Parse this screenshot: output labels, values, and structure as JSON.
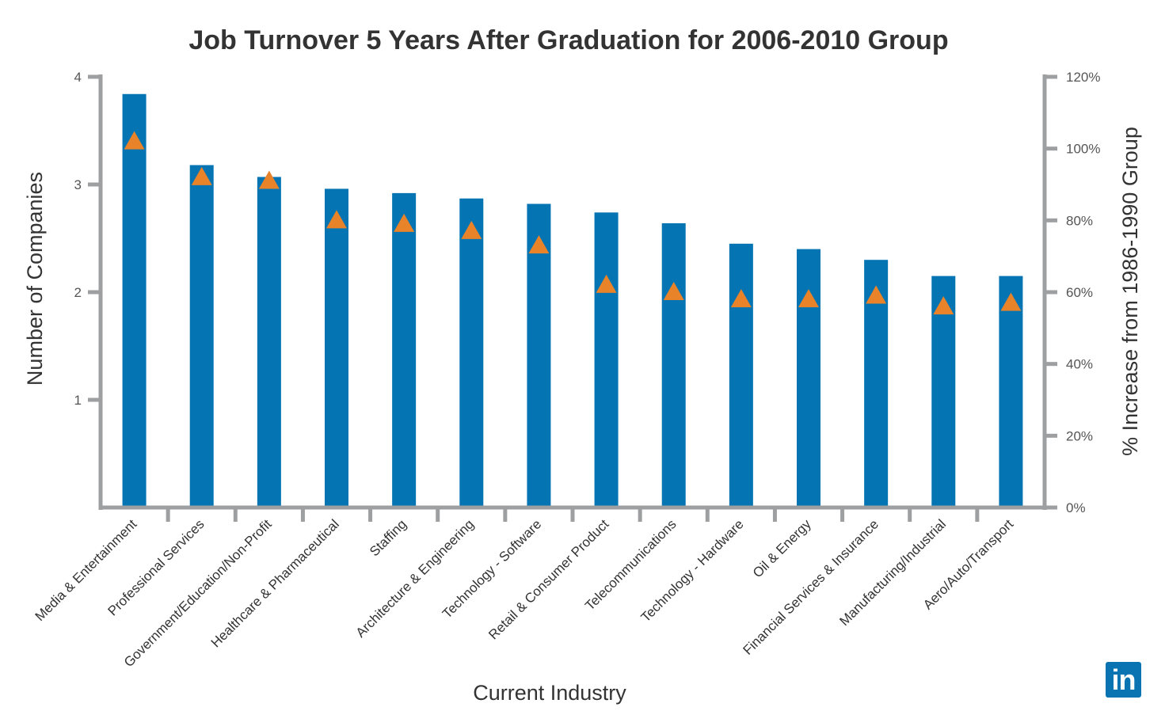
{
  "chart_data": {
    "type": "bar",
    "title": "Job Turnover 5 Years After Graduation for 2006-2010 Group",
    "xlabel": "Current Industry",
    "ylabel": "Number of Companies",
    "y2label": "% Increase from 1986-1990 Group",
    "ylim": [
      0,
      4
    ],
    "y2lim": [
      0,
      120
    ],
    "yticks": [
      "1",
      "2",
      "3",
      "4"
    ],
    "y2ticks": [
      "0%",
      "20%",
      "40%",
      "60%",
      "80%",
      "100%",
      "120%"
    ],
    "categories": [
      "Media & Entertainment",
      "Professional Services",
      "Government/Education/Non-Profit",
      "Healthcare & Pharmaceutical",
      "Staffing",
      "Architecture & Engineering",
      "Technology - Software",
      "Retail & Consumer Product",
      "Telecommunications",
      "Technology - Hardware",
      "Oil & Energy",
      "Financial Services & Insurance",
      "Manufacturing/Industrial",
      "Aero/Auto/Transport"
    ],
    "series": [
      {
        "name": "Number of Companies",
        "axis": "left",
        "marker": "bar",
        "color": "#0474b3",
        "values": [
          3.84,
          3.18,
          3.07,
          2.96,
          2.92,
          2.87,
          2.82,
          2.74,
          2.64,
          2.45,
          2.4,
          2.3,
          2.15,
          2.15
        ]
      },
      {
        "name": "% Increase from 1986-1990 Group",
        "axis": "right",
        "marker": "triangle",
        "color": "#e8832a",
        "values": [
          102,
          92,
          91,
          80,
          79,
          77,
          73,
          62,
          60,
          58,
          58,
          59,
          56,
          57
        ]
      }
    ],
    "grid": false
  },
  "logo": "in"
}
